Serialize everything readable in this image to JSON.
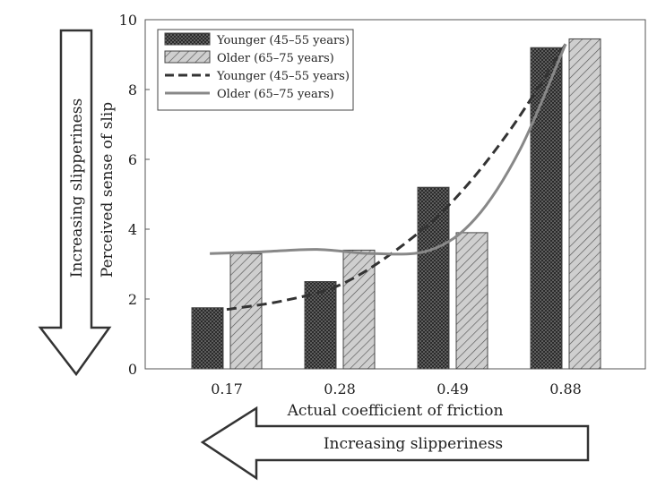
{
  "chart_data": {
    "type": "bar",
    "categories": [
      "0.17",
      "0.28",
      "0.49",
      "0.88"
    ],
    "series": [
      {
        "name": "Younger (45–55 years)",
        "kind": "bar",
        "values": [
          1.75,
          2.5,
          5.2,
          9.2
        ],
        "color": "#2b2b2b",
        "pattern": "dots"
      },
      {
        "name": "Older (65–75 years)",
        "kind": "bar",
        "values": [
          3.3,
          3.4,
          3.9,
          9.45
        ],
        "color": "#c8c8c8",
        "pattern": "hatch"
      }
    ],
    "trend_lines": [
      {
        "name": "Younger (45–55 years)",
        "style": "dashed",
        "color": "#333333",
        "points": [
          [
            0.0,
            1.7
          ],
          [
            0.5,
            1.95
          ],
          [
            1.0,
            2.4
          ],
          [
            1.5,
            3.4
          ],
          [
            2.0,
            4.8
          ],
          [
            2.5,
            6.8
          ],
          [
            3.0,
            9.3
          ]
        ]
      },
      {
        "name": "Older (65–75 years)",
        "style": "solid",
        "color": "#888888",
        "points": [
          [
            -0.15,
            3.3
          ],
          [
            0.3,
            3.35
          ],
          [
            0.8,
            3.42
          ],
          [
            1.3,
            3.3
          ],
          [
            1.8,
            3.4
          ],
          [
            2.2,
            4.3
          ],
          [
            2.6,
            6.3
          ],
          [
            3.0,
            9.3
          ]
        ]
      }
    ],
    "xlabel": "Actual coefficient of friction",
    "ylabel": "Perceived sense of slip",
    "ylim": [
      0,
      10
    ],
    "yticks": [
      "0",
      "2",
      "4",
      "6",
      "8",
      "10"
    ],
    "legend_position": "top-left",
    "grid": false
  },
  "arrows": {
    "vertical_label": "Increasing slipperiness",
    "horizontal_label": "Increasing slipperiness"
  }
}
